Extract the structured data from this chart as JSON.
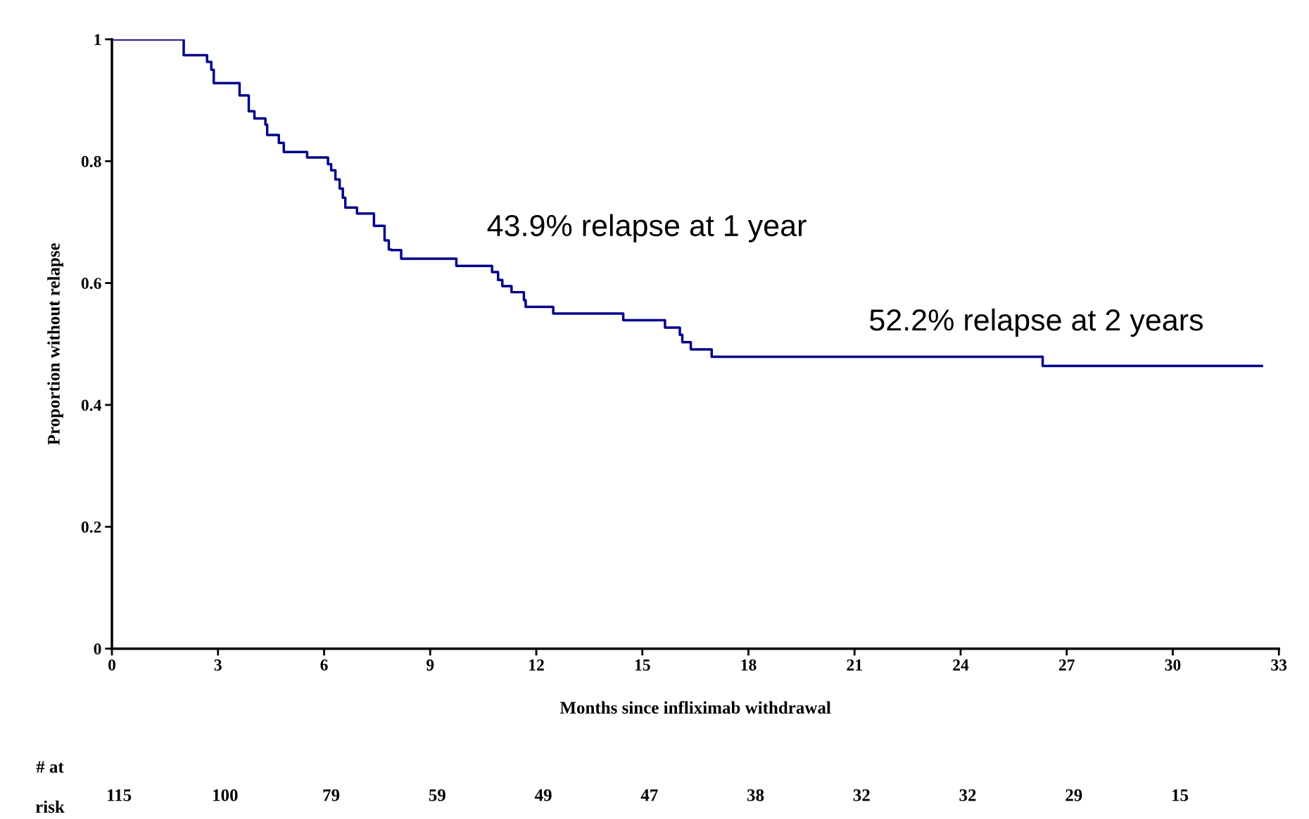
{
  "chart_data": {
    "type": "step",
    "xlabel": "Months since infliximab withdrawal",
    "ylabel": "Proportion without relapse",
    "xlim": [
      0,
      33
    ],
    "xticks": [
      0,
      3,
      6,
      9,
      12,
      15,
      18,
      21,
      24,
      27,
      30,
      33
    ],
    "ylim": [
      0,
      1
    ],
    "yticks": [
      0,
      0.2,
      0.4,
      0.6,
      0.8,
      1
    ],
    "grid": false,
    "legend": false,
    "series": [
      {
        "color": "#00008b",
        "x": [
          0,
          2.03,
          2.69,
          2.81,
          2.88,
          3.61,
          3.87,
          4.03,
          4.34,
          4.39,
          4.72,
          4.86,
          5.52,
          6.11,
          6.2,
          6.32,
          6.44,
          6.53,
          6.6,
          6.93,
          7.41,
          7.71,
          7.83,
          7.9,
          8.18,
          9.74,
          10.75,
          10.92,
          11.04,
          11.3,
          11.65,
          11.7,
          12.48,
          14.46,
          15.64,
          16.06,
          16.13,
          16.37,
          16.96,
          26.32,
          32.52
        ],
        "values": [
          1,
          0.974,
          0.963,
          0.95,
          0.928,
          0.908,
          0.882,
          0.87,
          0.86,
          0.843,
          0.83,
          0.815,
          0.806,
          0.795,
          0.785,
          0.77,
          0.755,
          0.74,
          0.724,
          0.714,
          0.694,
          0.67,
          0.655,
          0.654,
          0.64,
          0.628,
          0.618,
          0.605,
          0.595,
          0.585,
          0.572,
          0.561,
          0.55,
          0.539,
          0.527,
          0.515,
          0.503,
          0.491,
          0.479,
          0.464,
          0.464
        ]
      }
    ],
    "annotations": [
      "43.9% relapse at 1 year",
      "52.2% relapse at 2 years",
      "# at",
      "risk",
      "115",
      "100",
      "79",
      "59",
      "49",
      "47",
      "38",
      "32",
      "32",
      "29",
      "15"
    ]
  }
}
